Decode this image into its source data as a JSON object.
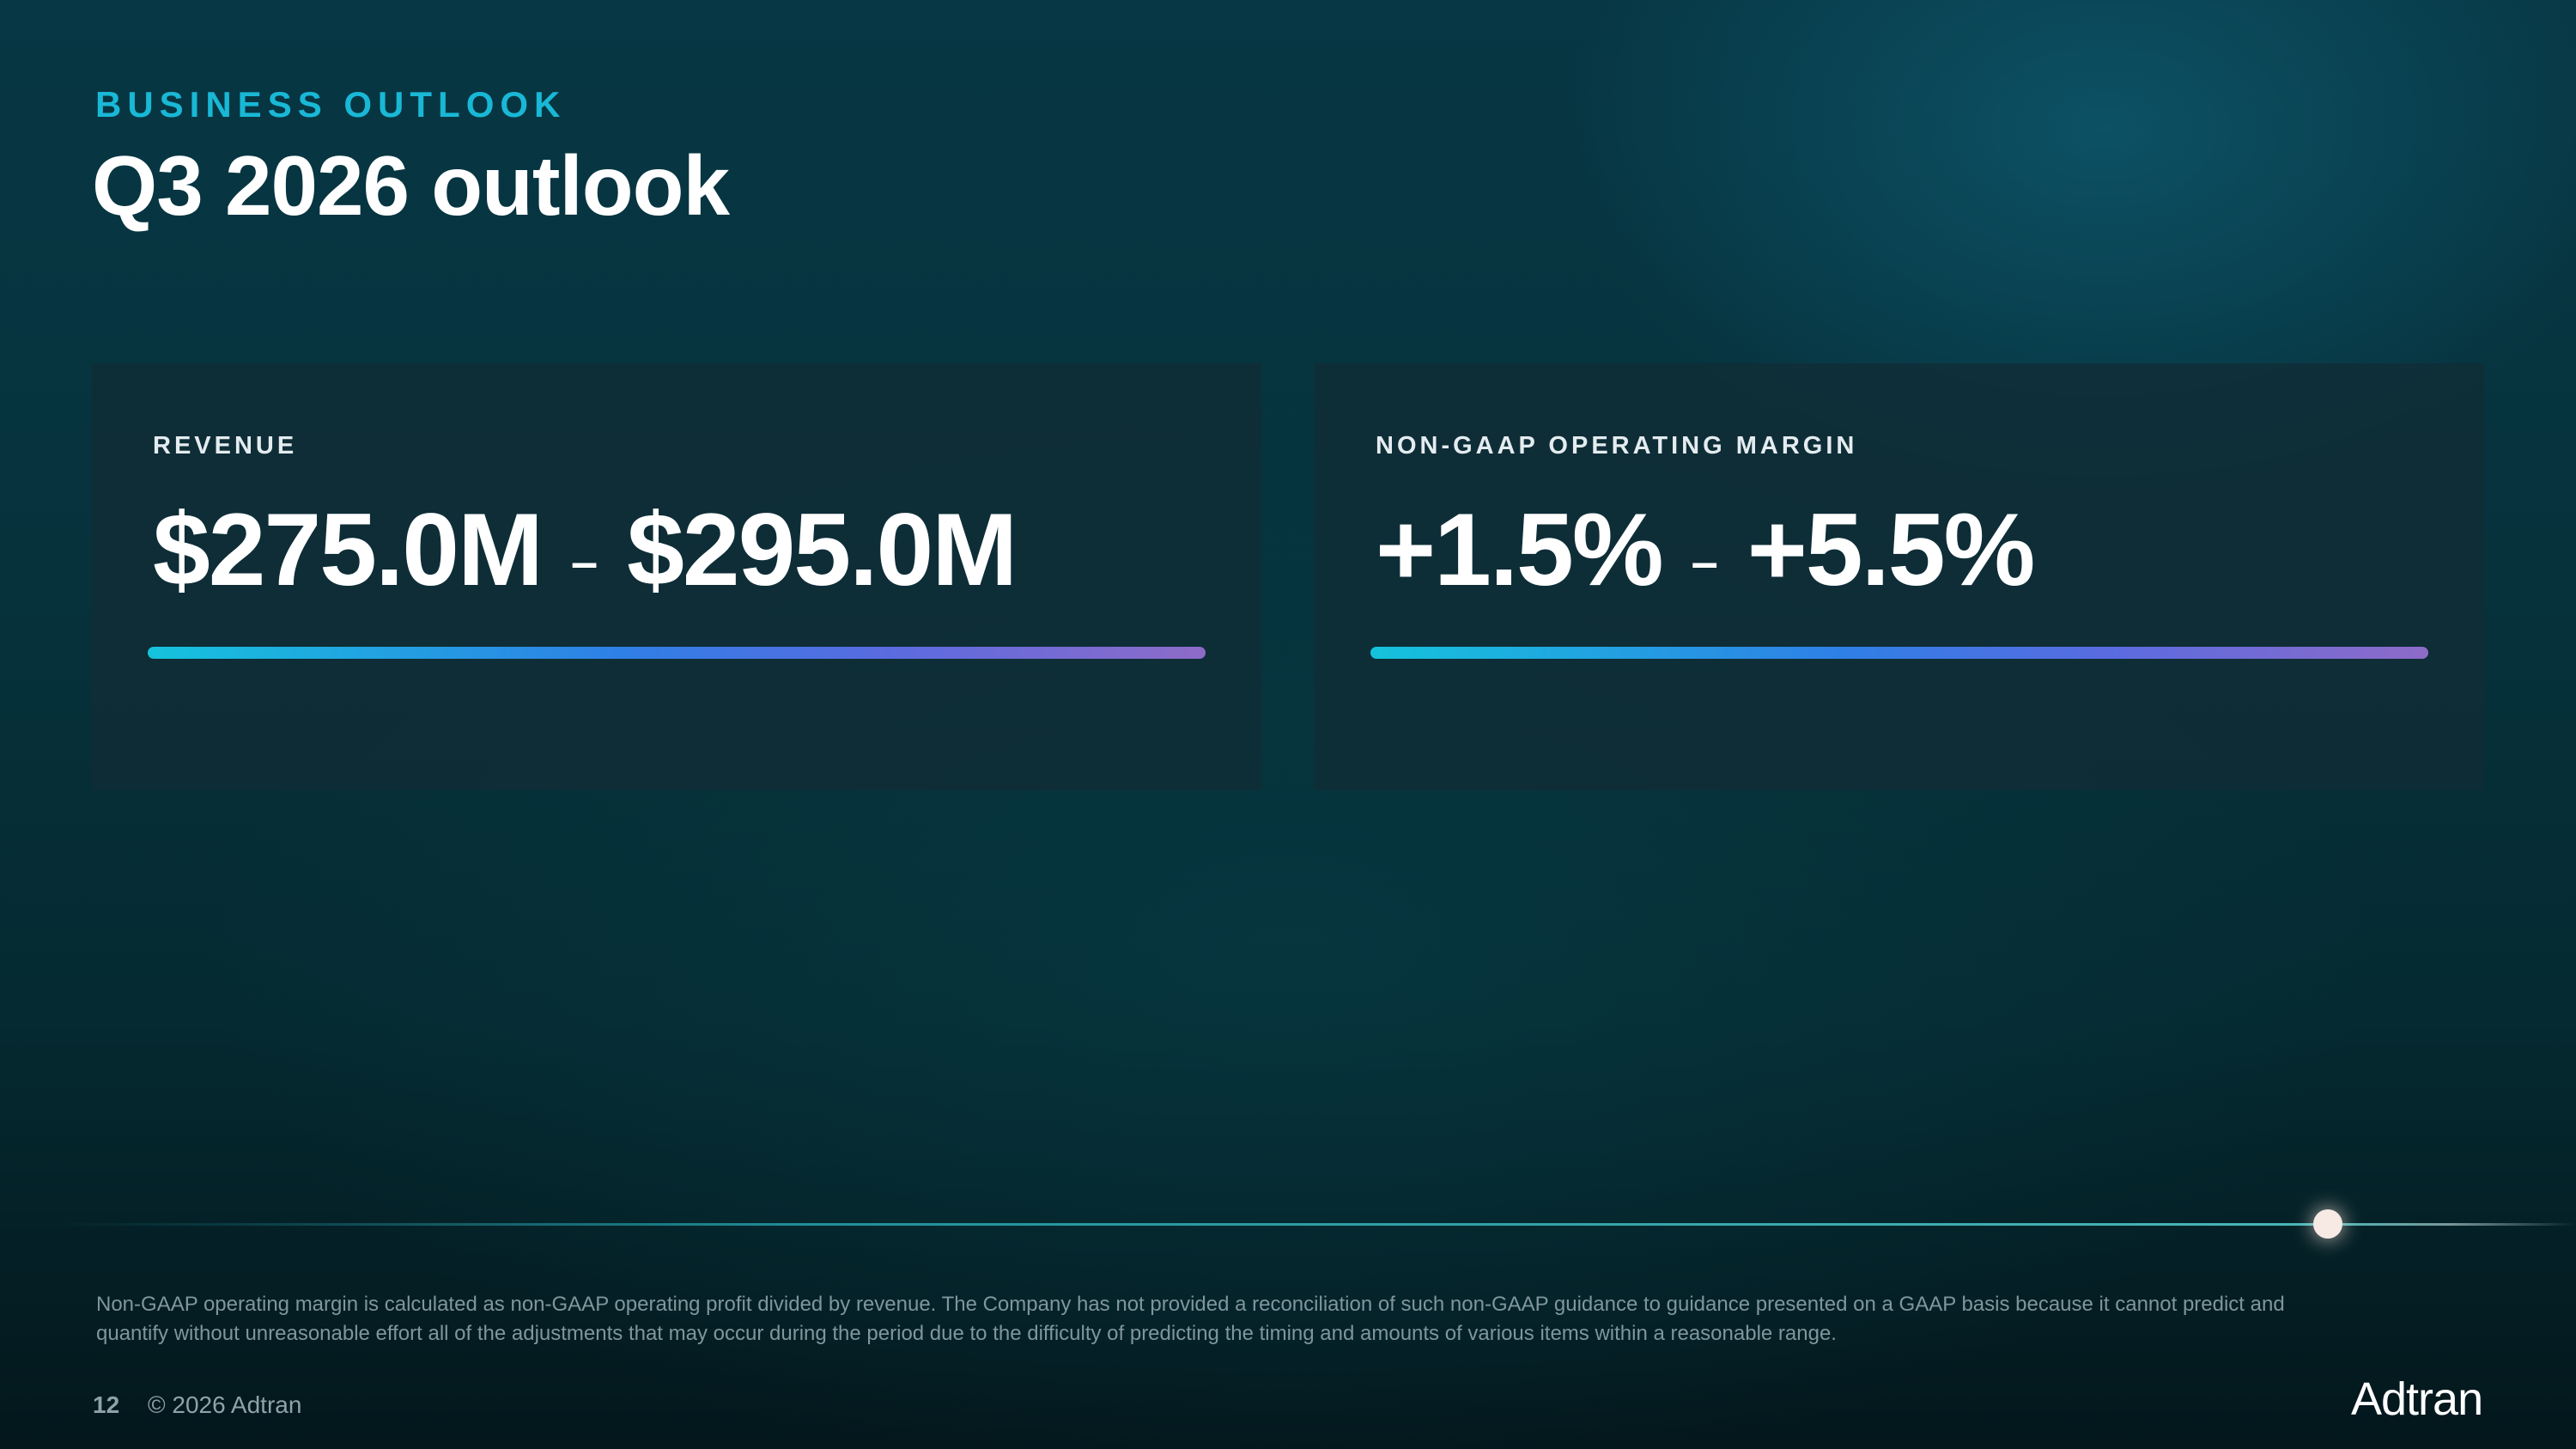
{
  "header": {
    "eyebrow": "BUSINESS OUTLOOK",
    "title": "Q3 2026 outlook"
  },
  "cards": [
    {
      "label": "REVENUE",
      "low": "$275.0M",
      "separator": "–",
      "high": "$295.0M"
    },
    {
      "label": "NON-GAAP OPERATING MARGIN",
      "low": "+1.5%",
      "separator": "–",
      "high": "+5.5%"
    }
  ],
  "footnote": "Non-GAAP operating margin is calculated as non-GAAP operating profit divided by revenue. The Company has not provided a reconciliation of such non-GAAP guidance to guidance presented on a GAAP basis because it cannot predict and quantify without unreasonable effort all of the adjustments that may occur during the period due to the difficulty of predicting the timing and amounts of various items within a reasonable range.",
  "footer": {
    "page": "12",
    "copyright": "© 2026 Adtran",
    "logo": "Adtran"
  }
}
